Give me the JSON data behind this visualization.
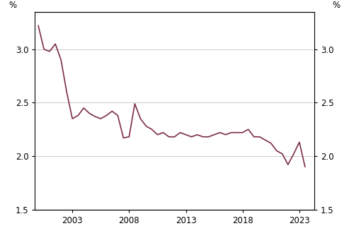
{
  "x": [
    2000.0,
    2000.5,
    2001.0,
    2001.5,
    2002.0,
    2002.5,
    2003.0,
    2003.5,
    2004.0,
    2004.5,
    2005.0,
    2005.5,
    2006.0,
    2006.5,
    2007.0,
    2007.5,
    2008.0,
    2008.5,
    2009.0,
    2009.5,
    2010.0,
    2010.5,
    2011.0,
    2011.5,
    2012.0,
    2012.5,
    2013.0,
    2013.5,
    2014.0,
    2014.5,
    2015.0,
    2015.5,
    2016.0,
    2016.5,
    2017.0,
    2017.5,
    2018.0,
    2018.5,
    2019.0,
    2019.5,
    2020.0,
    2020.5,
    2021.0,
    2021.5,
    2022.0,
    2022.5,
    2023.0,
    2023.5
  ],
  "y": [
    3.22,
    3.0,
    2.98,
    3.05,
    2.9,
    2.6,
    2.35,
    2.38,
    2.45,
    2.4,
    2.37,
    2.35,
    2.38,
    2.42,
    2.38,
    2.17,
    2.18,
    2.49,
    2.35,
    2.28,
    2.25,
    2.2,
    2.22,
    2.18,
    2.18,
    2.22,
    2.2,
    2.18,
    2.2,
    2.18,
    2.18,
    2.2,
    2.22,
    2.2,
    2.22,
    2.22,
    2.22,
    2.25,
    2.18,
    2.18,
    2.15,
    2.12,
    2.05,
    2.02,
    1.92,
    2.02,
    2.13,
    1.9
  ],
  "line_color": "#7b2d42",
  "line_width": 1.2,
  "ylim": [
    1.5,
    3.35
  ],
  "yticks": [
    1.5,
    2.0,
    2.5,
    3.0
  ],
  "xlim": [
    1999.7,
    2024.3
  ],
  "xticks": [
    2003,
    2008,
    2013,
    2018,
    2023
  ],
  "ylabel_left": "%",
  "ylabel_right": "%",
  "grid_color": "#cccccc",
  "grid_linewidth": 0.7,
  "background_color": "#ffffff",
  "tick_label_fontsize": 8.5
}
